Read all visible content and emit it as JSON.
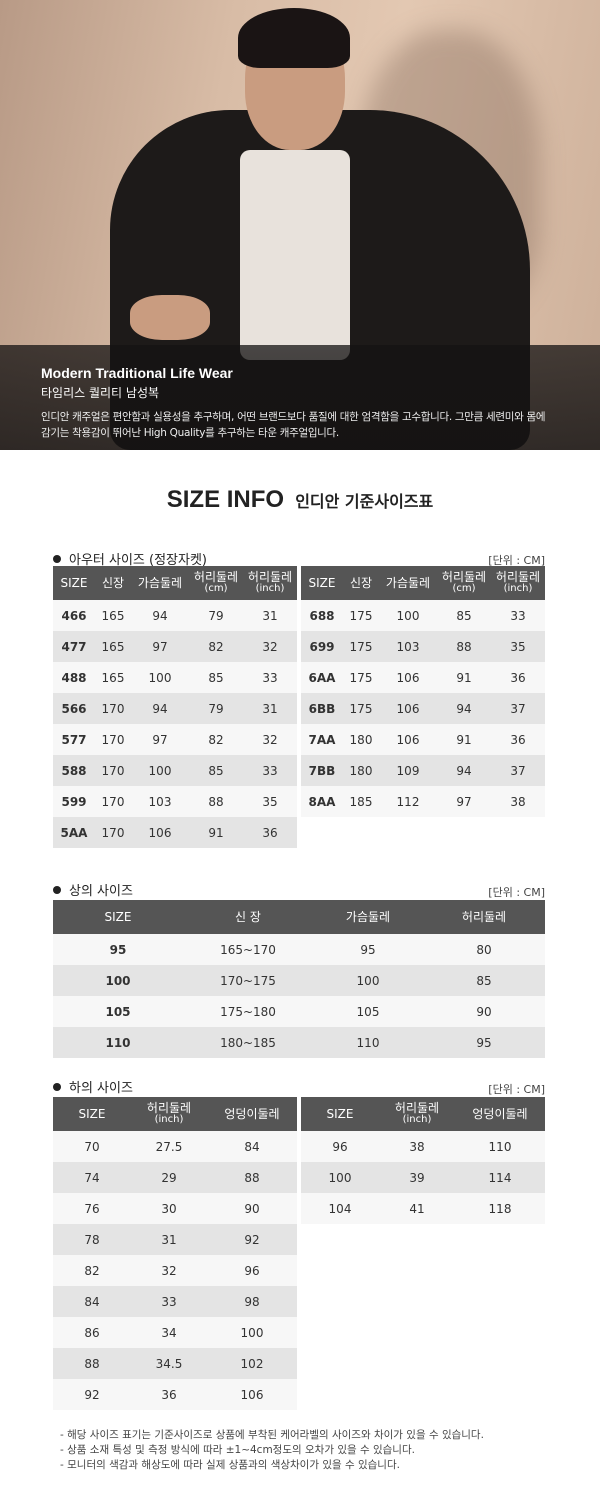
{
  "hero": {
    "title": "Modern Traditional Life Wear",
    "subtitle": "타임리스 퀄리티 남성복",
    "desc1": "인디안 캐주얼은 편안함과 실용성을 추구하며, 어떤 브랜드보다 품질에 대한 엄격함을 고수합니다. 그만큼 세련미와 몸에",
    "desc2": "감기는 착용감이 뛰어난 High Quality를 추구하는 타운 캐주얼입니다."
  },
  "title": {
    "en": "SIZE INFO",
    "ko": "인디안 기준사이즈표"
  },
  "unit": "[단위 : CM]",
  "outer": {
    "title": "아우터 사이즈 (정장자켓)",
    "headers": [
      "SIZE",
      "신장",
      "가슴둘레",
      "허리둘레|(cm)",
      "허리둘레|(inch)"
    ],
    "left": [
      [
        "466",
        "165",
        "94",
        "79",
        "31"
      ],
      [
        "477",
        "165",
        "97",
        "82",
        "32"
      ],
      [
        "488",
        "165",
        "100",
        "85",
        "33"
      ],
      [
        "566",
        "170",
        "94",
        "79",
        "31"
      ],
      [
        "577",
        "170",
        "97",
        "82",
        "32"
      ],
      [
        "588",
        "170",
        "100",
        "85",
        "33"
      ],
      [
        "599",
        "170",
        "103",
        "88",
        "35"
      ],
      [
        "5AA",
        "170",
        "106",
        "91",
        "36"
      ]
    ],
    "right": [
      [
        "688",
        "175",
        "100",
        "85",
        "33"
      ],
      [
        "699",
        "175",
        "103",
        "88",
        "35"
      ],
      [
        "6AA",
        "175",
        "106",
        "91",
        "36"
      ],
      [
        "6BB",
        "175",
        "106",
        "94",
        "37"
      ],
      [
        "7AA",
        "180",
        "106",
        "91",
        "36"
      ],
      [
        "7BB",
        "180",
        "109",
        "94",
        "37"
      ],
      [
        "8AA",
        "185",
        "112",
        "97",
        "38"
      ]
    ]
  },
  "top": {
    "title": "상의 사이즈",
    "headers": [
      "SIZE",
      "신 장",
      "가슴둘레",
      "허리둘레"
    ],
    "rows": [
      [
        "95",
        "165~170",
        "95",
        "80"
      ],
      [
        "100",
        "170~175",
        "100",
        "85"
      ],
      [
        "105",
        "175~180",
        "105",
        "90"
      ],
      [
        "110",
        "180~185",
        "110",
        "95"
      ]
    ]
  },
  "bottom": {
    "title": "하의 사이즈",
    "headers": [
      "SIZE",
      "허리둘레|(inch)",
      "엉덩이둘레"
    ],
    "left": [
      [
        "70",
        "27.5",
        "84"
      ],
      [
        "74",
        "29",
        "88"
      ],
      [
        "76",
        "30",
        "90"
      ],
      [
        "78",
        "31",
        "92"
      ],
      [
        "82",
        "32",
        "96"
      ],
      [
        "84",
        "33",
        "98"
      ],
      [
        "86",
        "34",
        "100"
      ],
      [
        "88",
        "34.5",
        "102"
      ],
      [
        "92",
        "36",
        "106"
      ]
    ],
    "right": [
      [
        "96",
        "38",
        "110"
      ],
      [
        "100",
        "39",
        "114"
      ],
      [
        "104",
        "41",
        "118"
      ]
    ]
  },
  "notes": [
    "- 해당 사이즈 표기는 기준사이즈로 상품에 부착된 케어라벨의 사이즈와 차이가 있을 수 있습니다.",
    "- 상품 소재 특성 및 측정 방식에 따라 ±1~4cm정도의 오차가 있을 수 있습니다.",
    "- 모니터의 색감과 해상도에 따라 실제 상품과의 색상차이가 있을 수 있습니다."
  ]
}
